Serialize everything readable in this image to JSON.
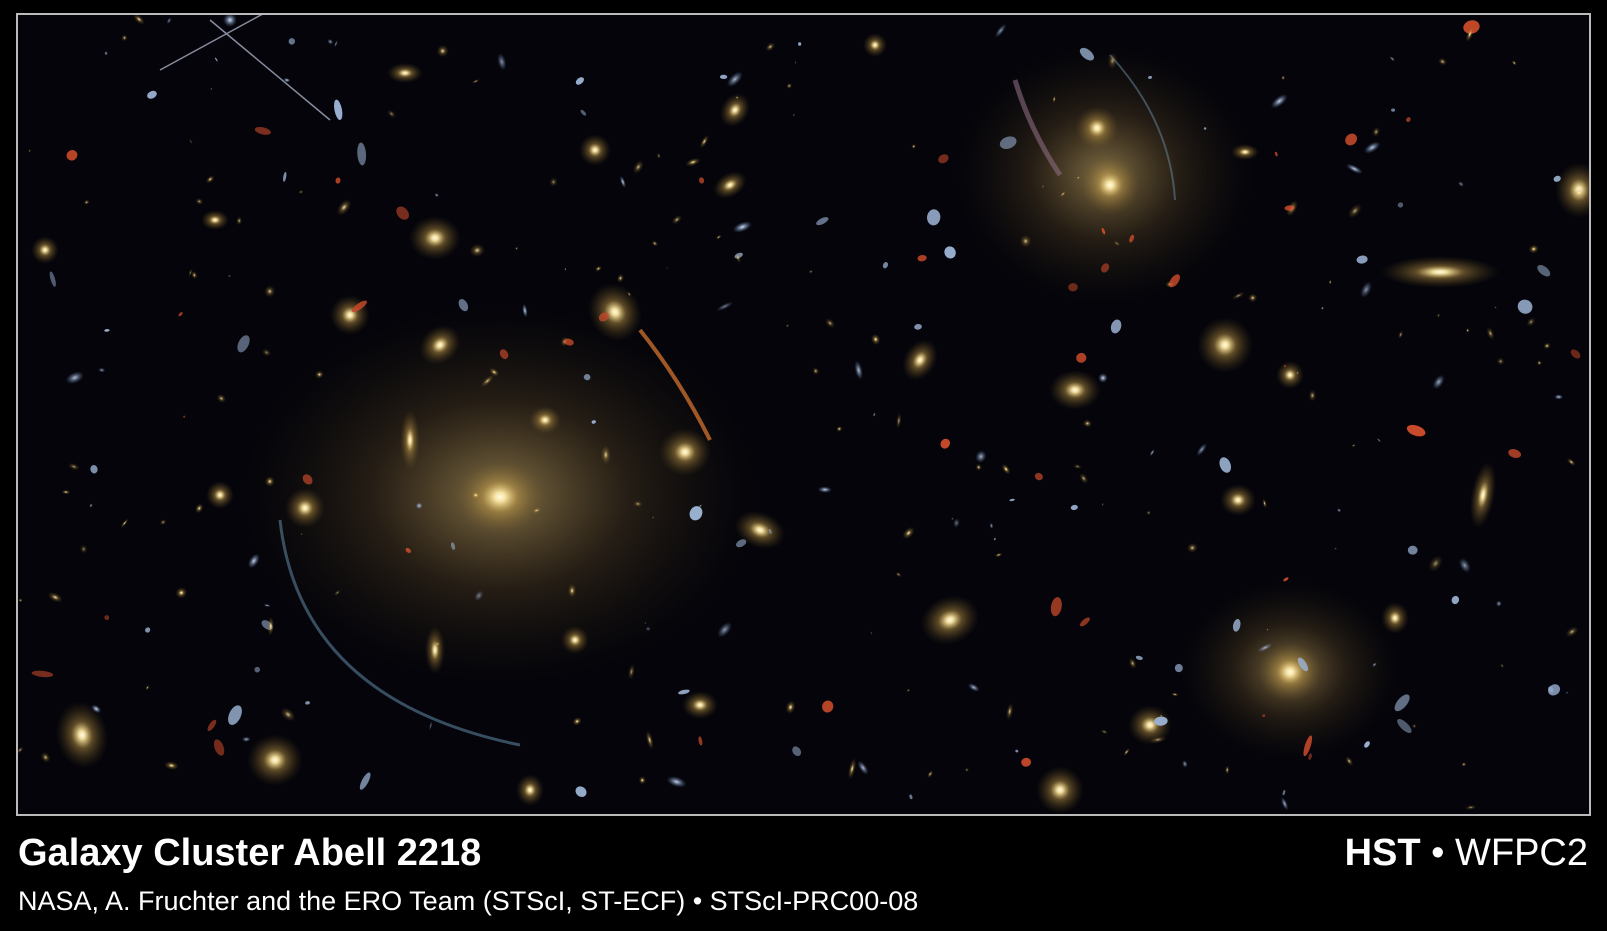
{
  "caption": {
    "title": "Galaxy Cluster Abell 2218",
    "instrument": "HST",
    "separator": "•",
    "camera": "WFPC2",
    "credit": "NASA, A. Fruchter and the ERO Team (STScI, ST-ECF) • STScI-PRC00-08"
  }
}
